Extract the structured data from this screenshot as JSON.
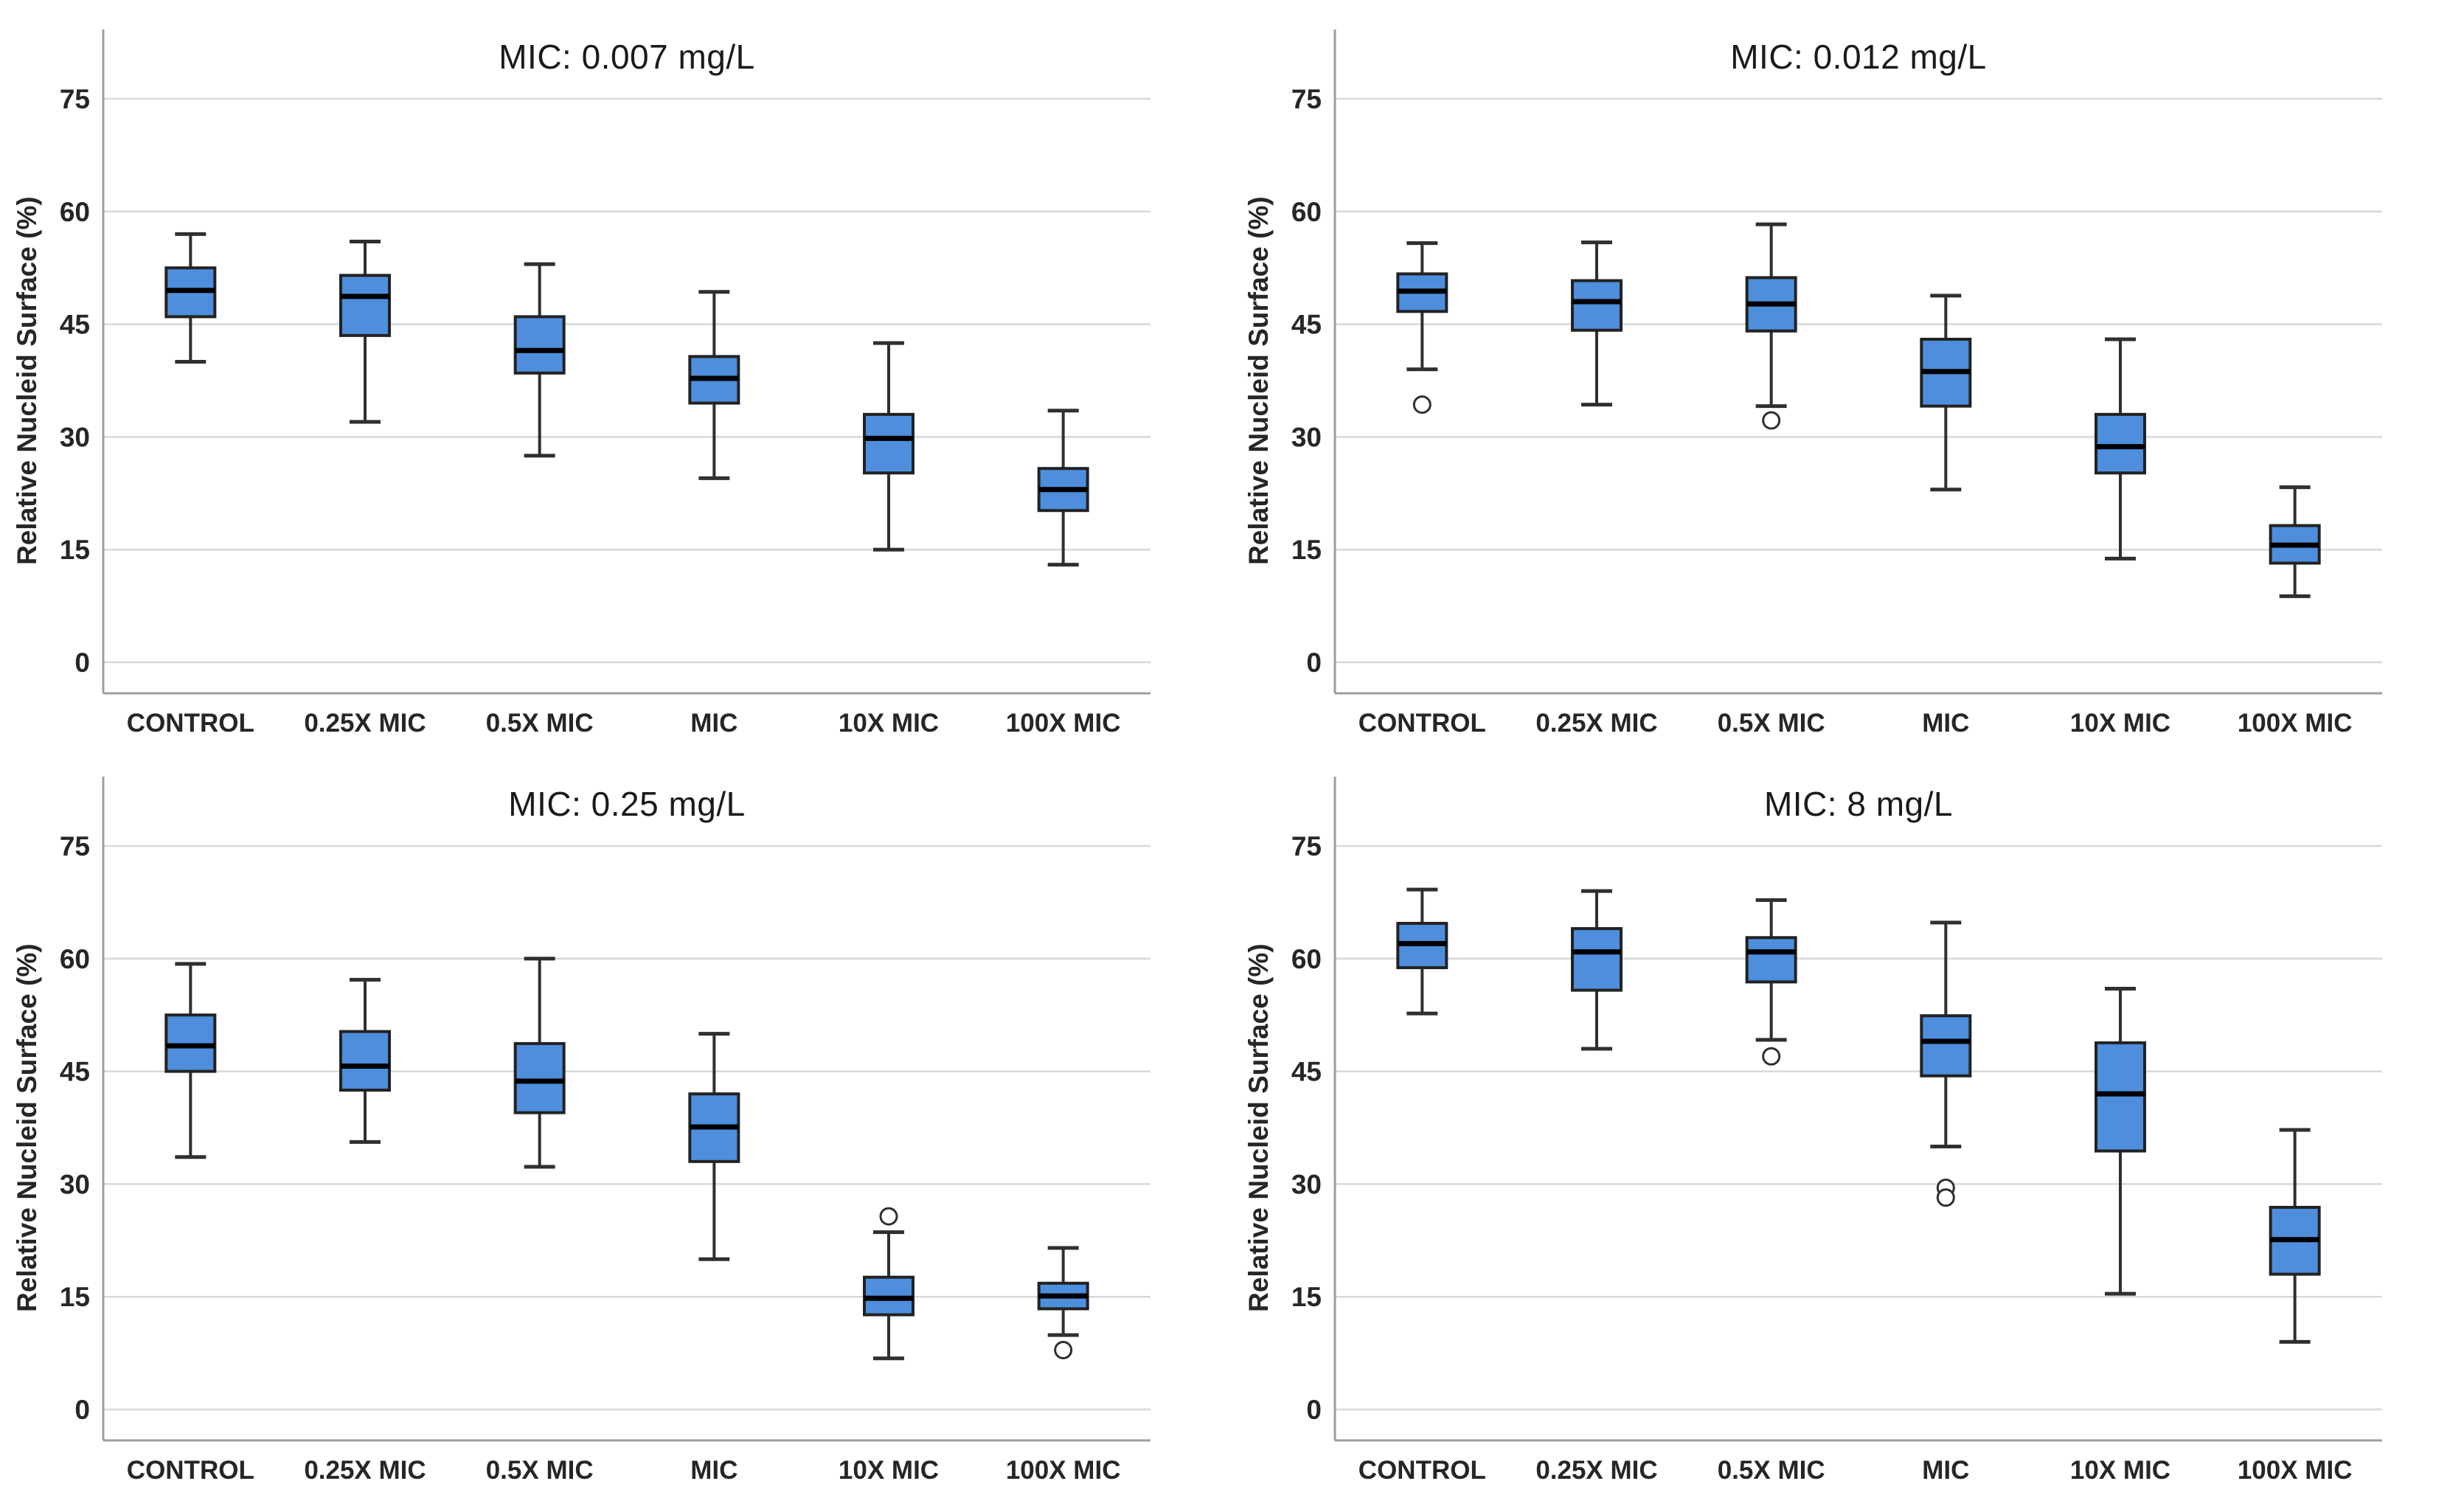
{
  "figure": {
    "background": "#ffffff",
    "layout": "2x2-grid-of-boxplots"
  },
  "style": {
    "box_fill": "#4E8EDC",
    "box_border": "#222222",
    "median_color": "#000000",
    "whisker_color": "#2F2F2F",
    "outlier_stroke": "#2F2F2F",
    "outlier_fill": "#ffffff",
    "gridline_color": "#D8D8D8",
    "axis_color": "#9E9E9E",
    "text_color": "#262626",
    "title_color": "#1a1a1a"
  },
  "chart_data": [
    {
      "type": "boxplot",
      "title": "MIC: 0.007 mg/L",
      "ylabel": "Relative Nucleid Surface (%)",
      "xlabel": "",
      "categories": [
        "CONTROL",
        "0.25X MIC",
        "0.5X MIC",
        "MIC",
        "10X MIC",
        "100X MIC"
      ],
      "yticks": [
        0,
        15,
        30,
        45,
        60,
        75
      ],
      "ylim": [
        -4.5,
        84.5
      ],
      "grid": true,
      "legend": "none",
      "boxes": [
        {
          "label": "CONTROL",
          "whislo": 40,
          "q1": 46,
          "med": 49.5,
          "q3": 52.5,
          "whishi": 57,
          "fliers": []
        },
        {
          "label": "0.25X MIC",
          "whislo": 32,
          "q1": 43.5,
          "med": 48.7,
          "q3": 51.5,
          "whishi": 56,
          "fliers": []
        },
        {
          "label": "0.5X MIC",
          "whislo": 27.5,
          "q1": 38.5,
          "med": 41.5,
          "q3": 46,
          "whishi": 53,
          "fliers": []
        },
        {
          "label": "MIC",
          "whislo": 24.5,
          "q1": 34.5,
          "med": 37.8,
          "q3": 40.7,
          "whishi": 49.3,
          "fliers": []
        },
        {
          "label": "10X MIC",
          "whislo": 15,
          "q1": 25.2,
          "med": 29.8,
          "q3": 33,
          "whishi": 42.5,
          "fliers": []
        },
        {
          "label": "100X MIC",
          "whislo": 13,
          "q1": 20.2,
          "med": 23,
          "q3": 25.8,
          "whishi": 33.5,
          "fliers": []
        }
      ]
    },
    {
      "type": "boxplot",
      "title": "MIC: 0.012 mg/L",
      "ylabel": "Relative Nucleid Surface (%)",
      "xlabel": "",
      "categories": [
        "CONTROL",
        "0.25X MIC",
        "0.5X MIC",
        "MIC",
        "10X MIC",
        "100X MIC"
      ],
      "yticks": [
        0,
        15,
        30,
        45,
        60,
        75
      ],
      "ylim": [
        -4.5,
        84.5
      ],
      "grid": true,
      "legend": "none",
      "boxes": [
        {
          "label": "CONTROL",
          "whislo": 39,
          "q1": 46.7,
          "med": 49.4,
          "q3": 51.7,
          "whishi": 55.8,
          "fliers": [
            34.3
          ]
        },
        {
          "label": "0.25X MIC",
          "whislo": 34.3,
          "q1": 44.2,
          "med": 48,
          "q3": 50.8,
          "whishi": 55.9,
          "fliers": []
        },
        {
          "label": "0.5X MIC",
          "whislo": 34.1,
          "q1": 44.1,
          "med": 47.7,
          "q3": 51.2,
          "whishi": 58.3,
          "fliers": [
            32.2
          ]
        },
        {
          "label": "MIC",
          "whislo": 23,
          "q1": 34.1,
          "med": 38.7,
          "q3": 43,
          "whishi": 48.8,
          "fliers": []
        },
        {
          "label": "10X MIC",
          "whislo": 13.8,
          "q1": 25.2,
          "med": 28.7,
          "q3": 33,
          "whishi": 43,
          "fliers": []
        },
        {
          "label": "100X MIC",
          "whislo": 8.8,
          "q1": 13.2,
          "med": 15.6,
          "q3": 18.2,
          "whishi": 23.3,
          "fliers": []
        }
      ]
    },
    {
      "type": "boxplot",
      "title": "MIC: 0.25 mg/L",
      "ylabel": "Relative Nucleid Surface (%)",
      "xlabel": "",
      "categories": [
        "CONTROL",
        "0.25X MIC",
        "0.5X MIC",
        "MIC",
        "10X MIC",
        "100X MIC"
      ],
      "yticks": [
        0,
        15,
        30,
        45,
        60,
        75
      ],
      "ylim": [
        -4.5,
        84.5
      ],
      "grid": true,
      "legend": "none",
      "boxes": [
        {
          "label": "CONTROL",
          "whislo": 33.6,
          "q1": 45,
          "med": 48.4,
          "q3": 52.5,
          "whishi": 59.3,
          "fliers": []
        },
        {
          "label": "0.25X MIC",
          "whislo": 35.6,
          "q1": 42.5,
          "med": 45.7,
          "q3": 50.3,
          "whishi": 57.2,
          "fliers": []
        },
        {
          "label": "0.5X MIC",
          "whislo": 32.3,
          "q1": 39.5,
          "med": 43.7,
          "q3": 48.7,
          "whishi": 60,
          "fliers": []
        },
        {
          "label": "MIC",
          "whislo": 20,
          "q1": 33,
          "med": 37.6,
          "q3": 42,
          "whishi": 50,
          "fliers": []
        },
        {
          "label": "10X MIC",
          "whislo": 6.8,
          "q1": 12.6,
          "med": 14.8,
          "q3": 17.6,
          "whishi": 23.6,
          "fliers": [
            25.7
          ]
        },
        {
          "label": "100X MIC",
          "whislo": 9.9,
          "q1": 13.4,
          "med": 15.1,
          "q3": 16.8,
          "whishi": 21.5,
          "fliers": [
            7.9
          ]
        }
      ]
    },
    {
      "type": "boxplot",
      "title": "MIC: 8 mg/L",
      "ylabel": "Relative Nucleid Surface (%)",
      "xlabel": "",
      "categories": [
        "CONTROL",
        "0.25X MIC",
        "0.5X MIC",
        "MIC",
        "10X MIC",
        "100X MIC"
      ],
      "yticks": [
        0,
        15,
        30,
        45,
        60,
        75
      ],
      "ylim": [
        -4.5,
        84.5
      ],
      "grid": true,
      "legend": "none",
      "boxes": [
        {
          "label": "CONTROL",
          "whislo": 52.7,
          "q1": 58.8,
          "med": 62,
          "q3": 64.7,
          "whishi": 69.2,
          "fliers": []
        },
        {
          "label": "0.25X MIC",
          "whislo": 48,
          "q1": 55.8,
          "med": 60.9,
          "q3": 64,
          "whishi": 69,
          "fliers": []
        },
        {
          "label": "0.5X MIC",
          "whislo": 49.2,
          "q1": 56.9,
          "med": 60.9,
          "q3": 62.8,
          "whishi": 67.8,
          "fliers": [
            47
          ]
        },
        {
          "label": "MIC",
          "whislo": 35,
          "q1": 44.4,
          "med": 49,
          "q3": 52.4,
          "whishi": 64.8,
          "fliers": [
            29.5,
            28.2
          ]
        },
        {
          "label": "10X MIC",
          "whislo": 15.4,
          "q1": 34.4,
          "med": 42,
          "q3": 48.8,
          "whishi": 56,
          "fliers": []
        },
        {
          "label": "100X MIC",
          "whislo": 9,
          "q1": 18,
          "med": 22.6,
          "q3": 26.9,
          "whishi": 37.2,
          "fliers": []
        }
      ]
    }
  ]
}
